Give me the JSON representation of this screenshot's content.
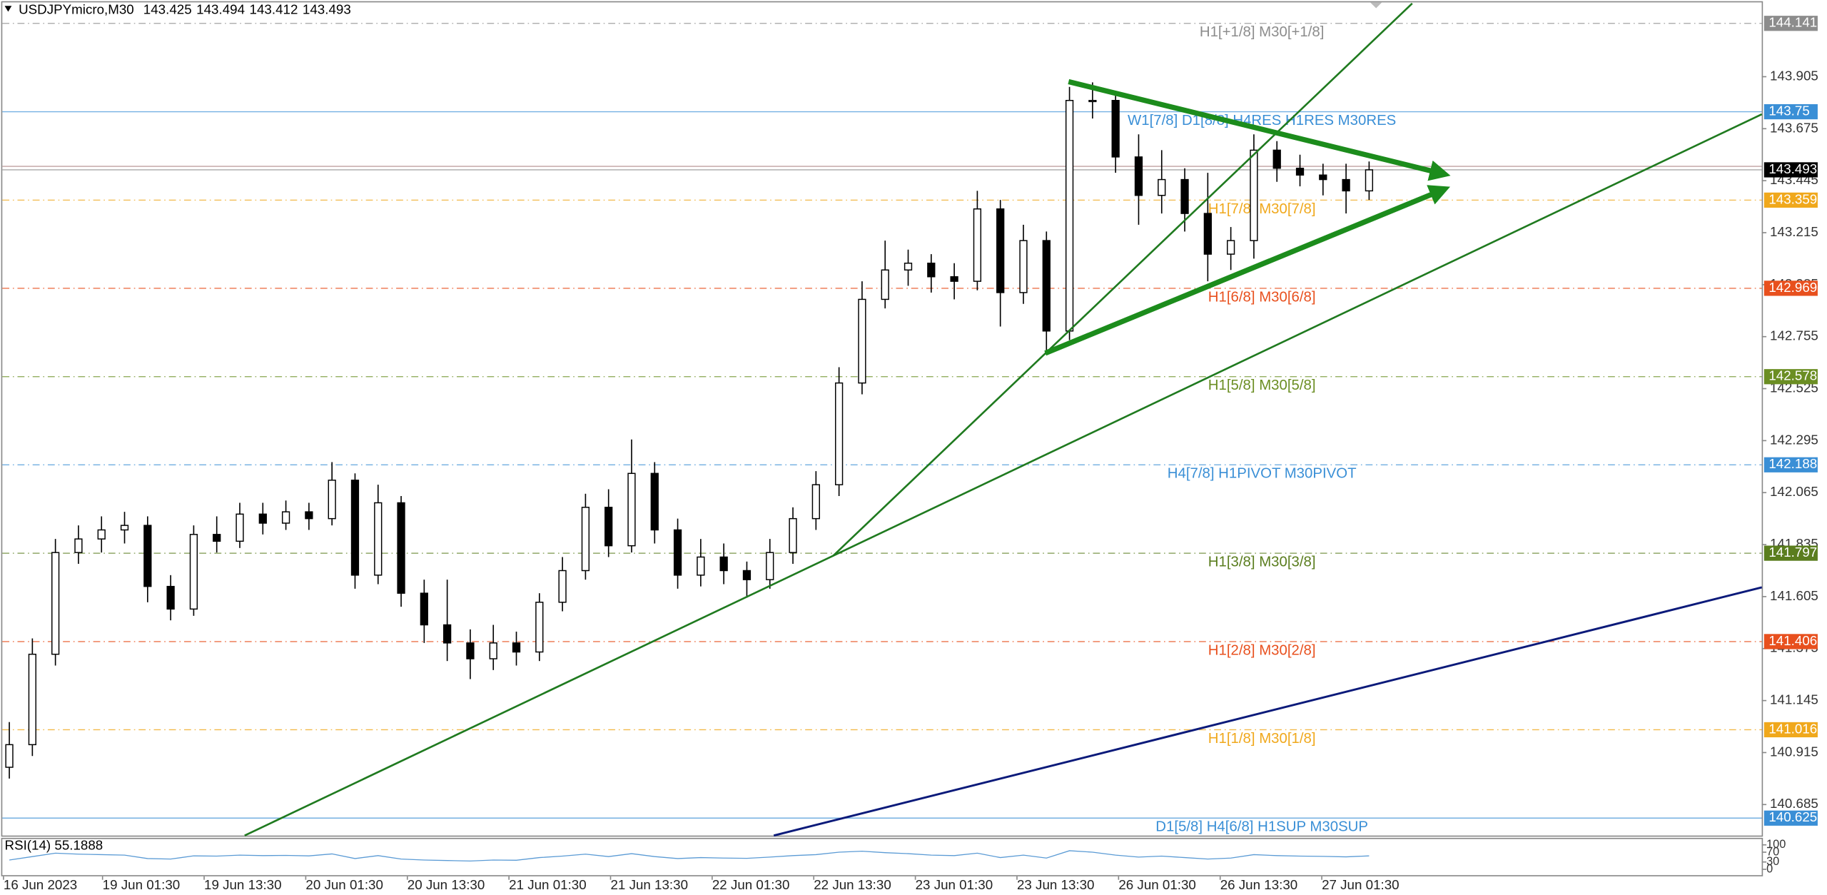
{
  "chart_data": {
    "type": "candlestick",
    "header": {
      "symbol": "USDJPYmicro,M30",
      "open": 143.425,
      "high": 143.494,
      "low": 143.412,
      "close": 143.493
    },
    "categories": [
      "16 Jun 2023",
      "19 Jun 01:30",
      "19 Jun 13:30",
      "20 Jun 01:30",
      "20 Jun 13:30",
      "21 Jun 01:30",
      "21 Jun 13:30",
      "22 Jun 01:30",
      "22 Jun 13:30",
      "23 Jun 01:30",
      "23 Jun 13:30",
      "26 Jun 01:30",
      "26 Jun 13:30",
      "27 Jun 01:30"
    ],
    "open": [
      140.85,
      140.95,
      141.35,
      141.8,
      141.86,
      141.9,
      141.92,
      141.65,
      141.55,
      141.88,
      141.85,
      141.97,
      141.93,
      141.98,
      141.95,
      142.12,
      141.7,
      142.02,
      141.62,
      141.48,
      141.4,
      141.33,
      141.4,
      141.36,
      141.58,
      141.72,
      142.0,
      141.83,
      142.15,
      141.9,
      141.7,
      141.78,
      141.72,
      141.68,
      141.8,
      141.95,
      142.1,
      142.55,
      142.92,
      143.05,
      143.08,
      143.02,
      143.0,
      143.32,
      142.95,
      143.18,
      142.78,
      143.8,
      143.8,
      143.55,
      143.38,
      143.45,
      143.3,
      143.12,
      143.18,
      143.58,
      143.5,
      143.47,
      143.45,
      143.4
    ],
    "high": [
      141.05,
      141.42,
      141.86,
      141.92,
      141.96,
      141.98,
      141.96,
      141.7,
      141.92,
      141.96,
      142.02,
      142.02,
      142.03,
      142.02,
      142.2,
      142.15,
      142.1,
      142.05,
      141.68,
      141.68,
      141.46,
      141.48,
      141.45,
      141.62,
      141.78,
      142.06,
      142.08,
      142.3,
      142.2,
      141.95,
      141.86,
      141.84,
      141.76,
      141.86,
      142.0,
      142.16,
      142.62,
      143.0,
      143.18,
      143.14,
      143.12,
      143.08,
      143.4,
      143.36,
      143.25,
      143.22,
      143.86,
      143.88,
      143.84,
      143.65,
      143.58,
      143.5,
      143.48,
      143.24,
      143.65,
      143.62,
      143.56,
      143.52,
      143.52,
      143.53
    ],
    "low": [
      140.8,
      140.9,
      141.3,
      141.75,
      141.8,
      141.84,
      141.58,
      141.5,
      141.52,
      141.8,
      141.82,
      141.88,
      141.9,
      141.9,
      141.92,
      141.64,
      141.66,
      141.56,
      141.4,
      141.32,
      141.24,
      141.28,
      141.3,
      141.32,
      141.54,
      141.68,
      141.78,
      141.8,
      141.84,
      141.64,
      141.65,
      141.66,
      141.6,
      141.64,
      141.75,
      141.9,
      142.05,
      142.5,
      142.88,
      142.98,
      142.95,
      142.92,
      142.96,
      142.8,
      142.9,
      142.68,
      142.74,
      143.72,
      143.48,
      143.25,
      143.3,
      143.22,
      143.0,
      143.05,
      143.1,
      143.44,
      143.42,
      143.38,
      143.3,
      143.36
    ],
    "close": [
      140.95,
      141.35,
      141.8,
      141.86,
      141.9,
      141.92,
      141.65,
      141.55,
      141.88,
      141.85,
      141.97,
      141.93,
      141.98,
      141.95,
      142.12,
      141.7,
      142.02,
      141.62,
      141.48,
      141.4,
      141.33,
      141.4,
      141.36,
      141.58,
      141.72,
      142.0,
      141.83,
      142.15,
      141.9,
      141.7,
      141.78,
      141.72,
      141.68,
      141.8,
      141.95,
      142.1,
      142.55,
      142.92,
      143.05,
      143.08,
      143.02,
      143.0,
      143.32,
      142.95,
      143.18,
      142.78,
      143.8,
      143.8,
      143.55,
      143.38,
      143.45,
      143.3,
      143.12,
      143.18,
      143.58,
      143.5,
      143.47,
      143.45,
      143.4,
      143.493
    ],
    "ylim": [
      140.548,
      144.239
    ],
    "yticks": [
      143.905,
      143.675,
      143.445,
      143.215,
      142.985,
      142.755,
      142.525,
      142.295,
      142.065,
      141.835,
      141.605,
      141.375,
      141.145,
      140.915,
      140.685
    ],
    "levels": [
      {
        "value": 144.141,
        "label": "H1[+1/8] M30[+1/8]",
        "color": "#8c8c8c",
        "solid": false
      },
      {
        "value": 143.75,
        "label": "W1[7/8] D1[8/8] H4RES H1RES M30RES",
        "color": "#3a8fd6",
        "solid": true
      },
      {
        "value": 143.359,
        "label": "H1[7/8] M30[7/8]",
        "color": "#f0a81c",
        "solid": false
      },
      {
        "value": 142.969,
        "label": "H1[6/8] M30[6/8]",
        "color": "#e8501e",
        "solid": false
      },
      {
        "value": 142.578,
        "label": "H1[5/8] M30[5/8]",
        "color": "#6b8e23",
        "solid": false
      },
      {
        "value": 142.188,
        "label": "H4[7/8] H1PIVOT M30PIVOT",
        "color": "#3a8fd6",
        "solid": false
      },
      {
        "value": 141.797,
        "label": "H1[3/8] M30[3/8]",
        "color": "#5a7d1e",
        "solid": false
      },
      {
        "value": 141.406,
        "label": "H1[2/8] M30[2/8]",
        "color": "#e8501e",
        "solid": false
      },
      {
        "value": 141.016,
        "label": "H1[1/8] M30[1/8]",
        "color": "#f0a81c",
        "solid": false
      },
      {
        "value": 140.625,
        "label": "D1[5/8] H4[6/8] H1SUP M30SUP",
        "color": "#3a8fd6",
        "solid": true
      }
    ],
    "current_price": 143.493,
    "trendlines": [
      {
        "x": [
          10.21,
          76.04
        ],
        "y": [
          140.548,
          143.739
        ],
        "color": "#1f7a1f",
        "width": 1.6,
        "arrow": false
      },
      {
        "x": [
          35.74,
          60.87
        ],
        "y": [
          141.785,
          144.229
        ],
        "color": "#1f7a1f",
        "width": 1.6,
        "arrow": false
      },
      {
        "x": [
          33.17,
          76.04
        ],
        "y": [
          140.548,
          141.646
        ],
        "color": "#0b1a7a",
        "width": 1.8,
        "arrow": false
      },
      {
        "x": [
          44.95,
          62.18
        ],
        "y": [
          142.682,
          143.404
        ],
        "color": "#1c8c1c",
        "width": 4.5,
        "arrow": true
      },
      {
        "x": [
          45.96,
          62.18
        ],
        "y": [
          143.883,
          143.476
        ],
        "color": "#1c8c1c",
        "width": 4.5,
        "arrow": true
      }
    ],
    "rsi": {
      "label": "RSI(14) 55.1888",
      "ylim": [
        0,
        100
      ],
      "yticks": [
        100,
        70,
        30,
        0
      ],
      "color": "#5b9bd5",
      "values": [
        38,
        52,
        66,
        62,
        60,
        58,
        44,
        42,
        55,
        54,
        58,
        56,
        57,
        55,
        63,
        44,
        56,
        42,
        38,
        36,
        34,
        38,
        37,
        48,
        54,
        62,
        52,
        64,
        52,
        44,
        48,
        46,
        45,
        50,
        56,
        60,
        70,
        74,
        68,
        64,
        58,
        56,
        66,
        48,
        58,
        46,
        76,
        70,
        58,
        50,
        54,
        48,
        42,
        46,
        60,
        56,
        54,
        53,
        51,
        55
      ]
    }
  }
}
